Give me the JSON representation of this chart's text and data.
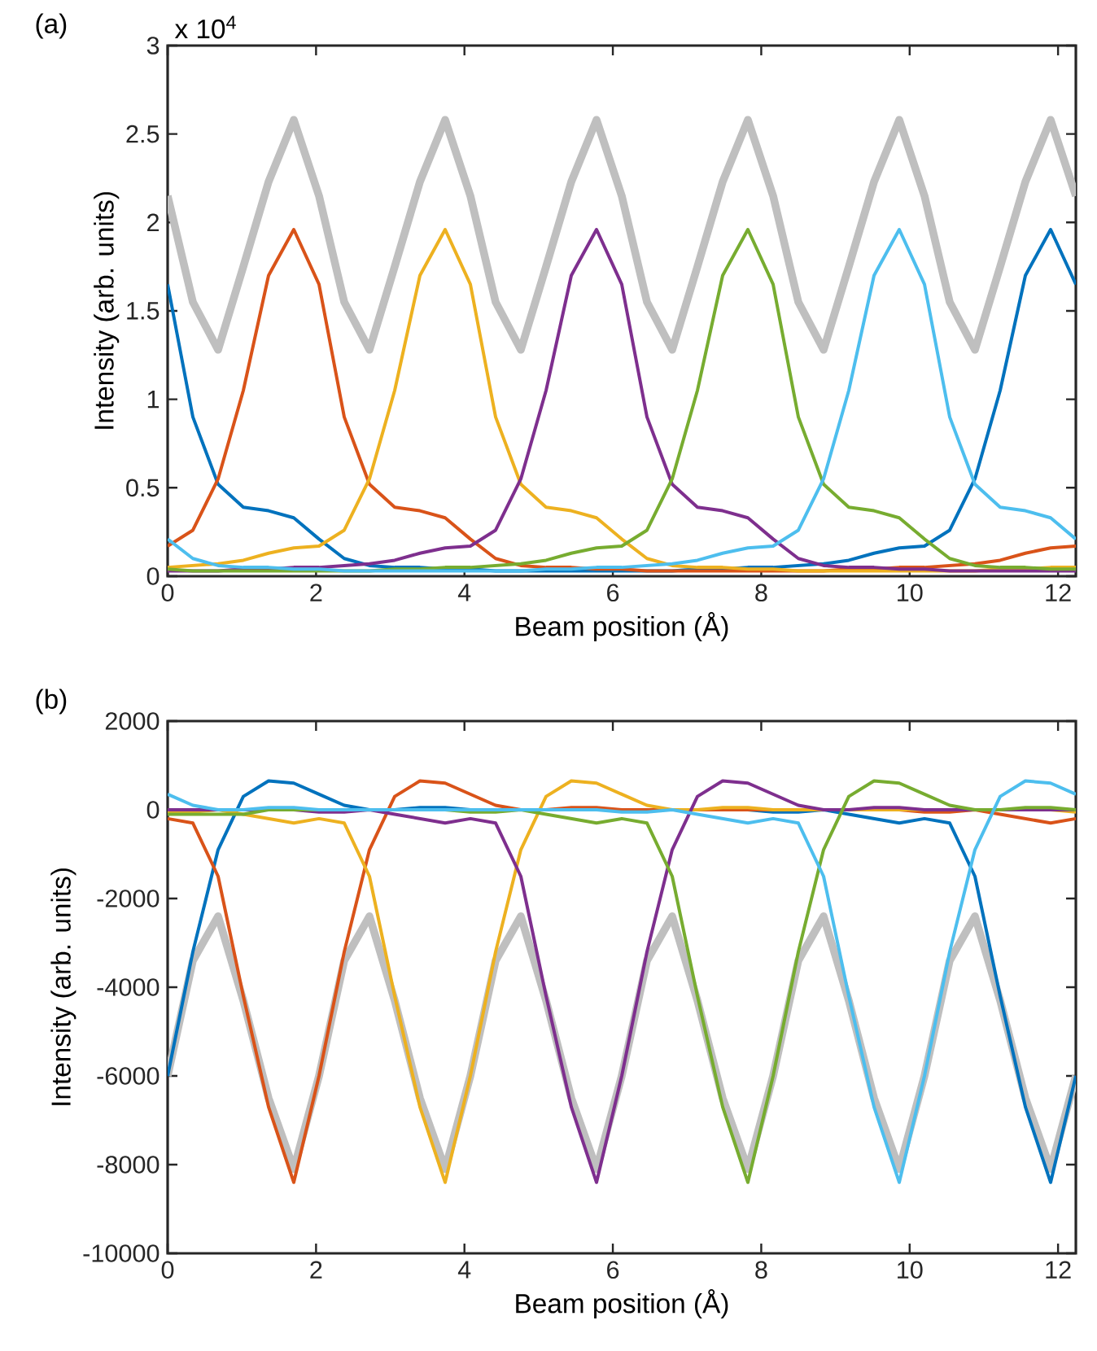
{
  "chart_data": [
    {
      "type": "line",
      "xlabel": "Beam position (Å)",
      "ylabel": "Intensity (arb. units)",
      "annotations": [
        "(a)",
        "x 10$^{4}$"
      ],
      "x": [
        0,
        0.34,
        0.68,
        1.02,
        1.36,
        1.7,
        2.04,
        2.38,
        2.72,
        3.06,
        3.4,
        3.74,
        4.08,
        4.42,
        4.76,
        5.1,
        5.44,
        5.78,
        6.12,
        6.46,
        6.8,
        7.14,
        7.48,
        7.82,
        8.16,
        8.5,
        8.84,
        9.18,
        9.52,
        9.86,
        10.2,
        10.54,
        10.88,
        11.22,
        11.56,
        11.9,
        12.24
      ],
      "xlim": [
        0,
        12.24
      ],
      "ylim": [
        0,
        3
      ],
      "xticks": [
        0,
        2,
        4,
        6,
        8,
        10,
        12
      ],
      "yticks": [
        0,
        0.5,
        1,
        1.5,
        2,
        2.5,
        3
      ],
      "marker": "none",
      "series": [
        {
          "color": "#bfbfbf",
          "values": [
            2.15,
            1.55,
            1.28,
            1.75,
            2.23,
            2.58,
            2.15,
            1.55,
            1.28,
            1.75,
            2.23,
            2.58,
            2.15,
            1.55,
            1.28,
            1.75,
            2.23,
            2.58,
            2.15,
            1.55,
            1.28,
            1.75,
            2.23,
            2.58,
            2.15,
            1.55,
            1.28,
            1.75,
            2.23,
            2.58,
            2.15,
            1.55,
            1.28,
            1.75,
            2.23,
            2.58,
            2.15
          ]
        },
        {
          "color": "#0072bd",
          "values": [
            1.65,
            0.9,
            0.52,
            0.39,
            0.37,
            0.33,
            0.21,
            0.1,
            0.06,
            0.05,
            0.05,
            0.04,
            0.04,
            0.03,
            0.03,
            0.03,
            0.03,
            0.03,
            0.03,
            0.03,
            0.03,
            0.04,
            0.04,
            0.05,
            0.05,
            0.06,
            0.07,
            0.09,
            0.13,
            0.16,
            0.17,
            0.26,
            0.55,
            1.05,
            1.7,
            1.96,
            1.65
          ]
        },
        {
          "color": "#d95319",
          "values": [
            0.17,
            0.26,
            0.55,
            1.05,
            1.7,
            1.96,
            1.65,
            0.9,
            0.52,
            0.39,
            0.37,
            0.33,
            0.21,
            0.1,
            0.06,
            0.05,
            0.05,
            0.04,
            0.04,
            0.03,
            0.03,
            0.03,
            0.03,
            0.03,
            0.03,
            0.03,
            0.03,
            0.04,
            0.04,
            0.05,
            0.05,
            0.06,
            0.07,
            0.09,
            0.13,
            0.16,
            0.17
          ]
        },
        {
          "color": "#edb120",
          "values": [
            0.05,
            0.06,
            0.07,
            0.09,
            0.13,
            0.16,
            0.17,
            0.26,
            0.55,
            1.05,
            1.7,
            1.96,
            1.65,
            0.9,
            0.52,
            0.39,
            0.37,
            0.33,
            0.21,
            0.1,
            0.06,
            0.05,
            0.05,
            0.04,
            0.04,
            0.03,
            0.03,
            0.03,
            0.03,
            0.03,
            0.03,
            0.03,
            0.03,
            0.04,
            0.04,
            0.05,
            0.05
          ]
        },
        {
          "color": "#7e2f8e",
          "values": [
            0.03,
            0.03,
            0.03,
            0.04,
            0.04,
            0.05,
            0.05,
            0.06,
            0.07,
            0.09,
            0.13,
            0.16,
            0.17,
            0.26,
            0.55,
            1.05,
            1.7,
            1.96,
            1.65,
            0.9,
            0.52,
            0.39,
            0.37,
            0.33,
            0.21,
            0.1,
            0.06,
            0.05,
            0.05,
            0.04,
            0.04,
            0.03,
            0.03,
            0.03,
            0.03,
            0.03,
            0.03
          ]
        },
        {
          "color": "#77ac30",
          "values": [
            0.04,
            0.03,
            0.03,
            0.03,
            0.03,
            0.03,
            0.03,
            0.03,
            0.03,
            0.04,
            0.04,
            0.05,
            0.05,
            0.06,
            0.07,
            0.09,
            0.13,
            0.16,
            0.17,
            0.26,
            0.55,
            1.05,
            1.7,
            1.96,
            1.65,
            0.9,
            0.52,
            0.39,
            0.37,
            0.33,
            0.21,
            0.1,
            0.06,
            0.05,
            0.05,
            0.04,
            0.04
          ]
        },
        {
          "color": "#4dbeee",
          "values": [
            0.21,
            0.1,
            0.06,
            0.05,
            0.05,
            0.04,
            0.04,
            0.03,
            0.03,
            0.03,
            0.03,
            0.03,
            0.03,
            0.03,
            0.03,
            0.04,
            0.04,
            0.05,
            0.05,
            0.06,
            0.07,
            0.09,
            0.13,
            0.16,
            0.17,
            0.26,
            0.55,
            1.05,
            1.7,
            1.96,
            1.65,
            0.9,
            0.52,
            0.39,
            0.37,
            0.33,
            0.21
          ]
        }
      ]
    },
    {
      "type": "line",
      "xlabel": "Beam position (Å)",
      "ylabel": "Intensity (arb. units)",
      "annotations": [
        "(b)"
      ],
      "x": [
        0,
        0.34,
        0.68,
        1.02,
        1.36,
        1.7,
        2.04,
        2.38,
        2.72,
        3.06,
        3.4,
        3.74,
        4.08,
        4.42,
        4.76,
        5.1,
        5.44,
        5.78,
        6.12,
        6.46,
        6.8,
        7.14,
        7.48,
        7.82,
        8.16,
        8.5,
        8.84,
        9.18,
        9.52,
        9.86,
        10.2,
        10.54,
        10.88,
        11.22,
        11.56,
        11.9,
        12.24
      ],
      "xlim": [
        0,
        12.24
      ],
      "ylim": [
        -10000,
        2000
      ],
      "xticks": [
        0,
        2,
        4,
        6,
        8,
        10,
        12
      ],
      "yticks": [
        -10000,
        -8000,
        -6000,
        -4000,
        -2000,
        0,
        2000
      ],
      "marker": "none",
      "series": [
        {
          "color": "#bfbfbf",
          "values": [
            -6000,
            -3400,
            -2400,
            -4300,
            -6500,
            -8100,
            -6000,
            -3400,
            -2400,
            -4300,
            -6500,
            -8100,
            -6000,
            -3400,
            -2400,
            -4300,
            -6500,
            -8100,
            -6000,
            -3400,
            -2400,
            -4300,
            -6500,
            -8100,
            -6000,
            -3400,
            -2400,
            -4300,
            -6500,
            -8100,
            -6000,
            -3400,
            -2400,
            -4300,
            -6500,
            -8100,
            -6000
          ]
        },
        {
          "color": "#0072bd",
          "values": [
            -6000,
            -3200,
            -900,
            300,
            650,
            600,
            350,
            100,
            0,
            0,
            50,
            50,
            0,
            0,
            0,
            0,
            0,
            0,
            0,
            0,
            0,
            0,
            0,
            0,
            -50,
            -50,
            0,
            -100,
            -200,
            -300,
            -200,
            -300,
            -1500,
            -4200,
            -6700,
            -8400,
            -6000
          ]
        },
        {
          "color": "#d95319",
          "values": [
            -200,
            -300,
            -1500,
            -4200,
            -6700,
            -8400,
            -6000,
            -3200,
            -900,
            300,
            650,
            600,
            350,
            100,
            0,
            0,
            50,
            50,
            0,
            0,
            0,
            0,
            0,
            0,
            0,
            0,
            0,
            0,
            0,
            0,
            -50,
            -50,
            0,
            -100,
            -200,
            -300,
            -200
          ]
        },
        {
          "color": "#edb120",
          "values": [
            -50,
            -50,
            0,
            -100,
            -200,
            -300,
            -200,
            -300,
            -1500,
            -4200,
            -6700,
            -8400,
            -6000,
            -3200,
            -900,
            300,
            650,
            600,
            350,
            100,
            0,
            0,
            50,
            50,
            0,
            0,
            0,
            0,
            0,
            0,
            0,
            0,
            0,
            0,
            0,
            0,
            -50
          ]
        },
        {
          "color": "#7e2f8e",
          "values": [
            0,
            0,
            0,
            0,
            0,
            0,
            -50,
            -50,
            0,
            -100,
            -200,
            -300,
            -200,
            -300,
            -1500,
            -4200,
            -6700,
            -8400,
            -6000,
            -3200,
            -900,
            300,
            650,
            600,
            350,
            100,
            0,
            0,
            50,
            50,
            0,
            0,
            0,
            0,
            0,
            0,
            0
          ]
        },
        {
          "color": "#77ac30",
          "values": [
            -100,
            -100,
            -100,
            -100,
            0,
            0,
            0,
            0,
            0,
            0,
            0,
            0,
            -50,
            -50,
            0,
            -100,
            -200,
            -300,
            -200,
            -300,
            -1500,
            -4200,
            -6700,
            -8400,
            -6000,
            -3200,
            -900,
            300,
            650,
            600,
            350,
            100,
            0,
            0,
            50,
            50,
            0
          ]
        },
        {
          "color": "#4dbeee",
          "values": [
            350,
            100,
            0,
            0,
            50,
            50,
            0,
            0,
            0,
            0,
            0,
            0,
            0,
            0,
            0,
            0,
            0,
            0,
            -50,
            -50,
            0,
            -100,
            -200,
            -300,
            -200,
            -300,
            -1500,
            -4200,
            -6700,
            -8400,
            -6000,
            -3200,
            -900,
            300,
            650,
            600,
            350
          ]
        }
      ]
    }
  ]
}
